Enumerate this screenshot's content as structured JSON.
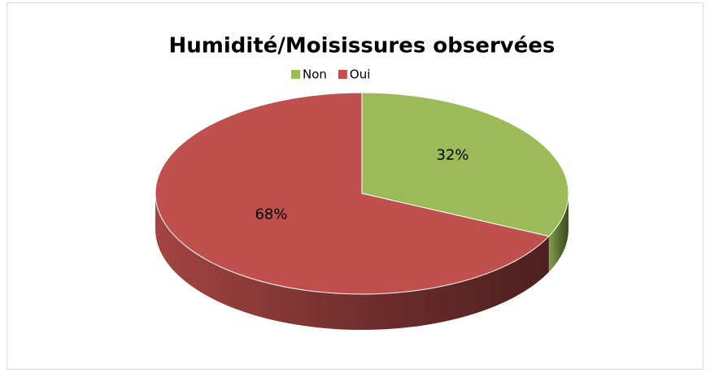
{
  "chart_data": {
    "type": "pie",
    "title": "Humidité/Moisissures observées",
    "categories": [
      "Non",
      "Oui"
    ],
    "values": [
      32,
      68
    ],
    "value_labels": [
      "32%",
      "68%"
    ],
    "colors": [
      "#9bbb59",
      "#c0504d"
    ],
    "legend": "top"
  }
}
